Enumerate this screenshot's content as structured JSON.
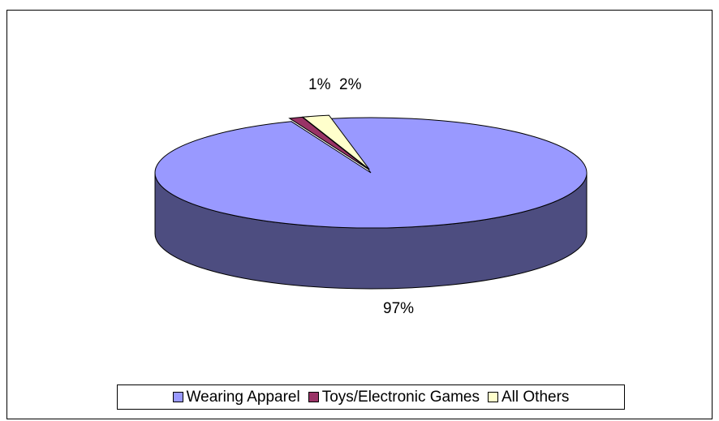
{
  "chart_data": {
    "type": "pie",
    "title": "",
    "slices": [
      {
        "label": "Wearing Apparel",
        "value": 97,
        "value_label": "97%",
        "color": "#9999ff",
        "side_color": "#4d4d80"
      },
      {
        "label": "Toys/Electronic Games",
        "value": 1,
        "value_label": "1%",
        "color": "#993366",
        "side_color": "#4d1a33"
      },
      {
        "label": "All Others",
        "value": 2,
        "value_label": "2%",
        "color": "#ffffcc",
        "side_color": "#80805f"
      }
    ],
    "legend_position": "bottom",
    "style": "3d exploded pie"
  }
}
